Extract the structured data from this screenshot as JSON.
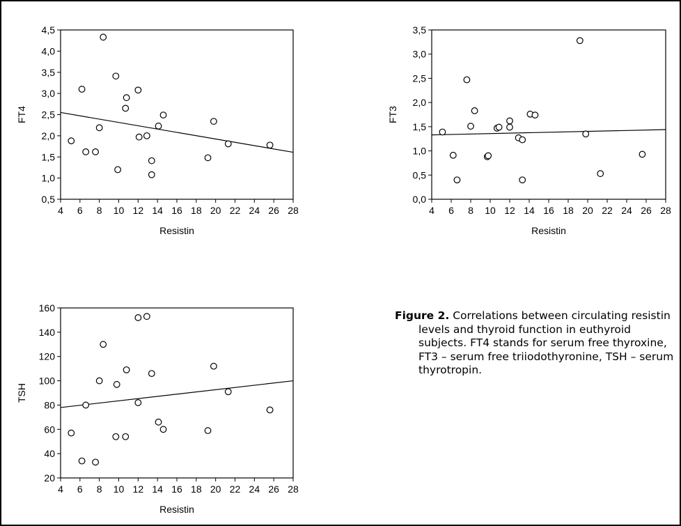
{
  "chart_data": [
    {
      "type": "scatter",
      "xlabel": "Resistin",
      "ylabel": "FT4",
      "xlim": [
        4,
        28
      ],
      "ylim": [
        0.5,
        4.5
      ],
      "xticks": [
        "4",
        "6",
        "8",
        "10",
        "12",
        "14",
        "16",
        "18",
        "20",
        "22",
        "24",
        "26",
        "28"
      ],
      "yticks": [
        "0,5",
        "1,0",
        "1,5",
        "2,0",
        "2,5",
        "3,0",
        "3,5",
        "4,0",
        "4,5"
      ],
      "grid": false,
      "points": [
        [
          5.1,
          1.88
        ],
        [
          6.2,
          3.1
        ],
        [
          6.6,
          1.62
        ],
        [
          7.6,
          1.62
        ],
        [
          8.0,
          2.19
        ],
        [
          8.4,
          4.33
        ],
        [
          9.7,
          3.41
        ],
        [
          9.9,
          1.2
        ],
        [
          10.7,
          2.65
        ],
        [
          10.8,
          2.9
        ],
        [
          12.0,
          3.08
        ],
        [
          12.1,
          1.97
        ],
        [
          12.9,
          2.0
        ],
        [
          13.4,
          1.41
        ],
        [
          13.4,
          1.08
        ],
        [
          14.1,
          2.23
        ],
        [
          14.6,
          2.49
        ],
        [
          19.2,
          1.48
        ],
        [
          19.8,
          2.34
        ],
        [
          21.3,
          1.81
        ],
        [
          25.6,
          1.78
        ]
      ],
      "trendline": {
        "x": [
          4,
          28
        ],
        "y": [
          2.55,
          1.61
        ]
      }
    },
    {
      "type": "scatter",
      "xlabel": "Resistin",
      "ylabel": "FT3",
      "xlim": [
        4,
        28
      ],
      "ylim": [
        0,
        3.5
      ],
      "xticks": [
        "4",
        "6",
        "8",
        "10",
        "12",
        "14",
        "16",
        "18",
        "20",
        "22",
        "24",
        "26",
        "28"
      ],
      "yticks": [
        "0,0",
        "0,5",
        "1,0",
        "1,5",
        "2,0",
        "2,5",
        "3,0",
        "3,5"
      ],
      "grid": false,
      "points": [
        [
          5.1,
          1.39
        ],
        [
          6.2,
          0.91
        ],
        [
          6.6,
          0.4
        ],
        [
          7.6,
          2.47
        ],
        [
          8.0,
          1.51
        ],
        [
          8.4,
          1.83
        ],
        [
          9.7,
          0.88
        ],
        [
          9.8,
          0.9
        ],
        [
          10.7,
          1.47
        ],
        [
          10.9,
          1.49
        ],
        [
          12.0,
          1.62
        ],
        [
          12.0,
          1.49
        ],
        [
          12.9,
          1.27
        ],
        [
          13.3,
          1.23
        ],
        [
          13.3,
          0.4
        ],
        [
          14.1,
          1.76
        ],
        [
          14.6,
          1.74
        ],
        [
          19.2,
          3.28
        ],
        [
          19.8,
          1.35
        ],
        [
          21.3,
          0.53
        ],
        [
          25.6,
          0.93
        ]
      ],
      "trendline": {
        "x": [
          4,
          28
        ],
        "y": [
          1.33,
          1.44
        ]
      }
    },
    {
      "type": "scatter",
      "xlabel": "Resistin",
      "ylabel": "TSH",
      "xlim": [
        4,
        28
      ],
      "ylim": [
        20,
        160
      ],
      "xticks": [
        "4",
        "6",
        "8",
        "10",
        "12",
        "14",
        "16",
        "18",
        "20",
        "22",
        "24",
        "26",
        "28"
      ],
      "yticks": [
        "20",
        "40",
        "60",
        "80",
        "100",
        "120",
        "140",
        "160"
      ],
      "grid": false,
      "points": [
        [
          5.1,
          57
        ],
        [
          6.2,
          34
        ],
        [
          6.6,
          80
        ],
        [
          7.6,
          33
        ],
        [
          8.0,
          100
        ],
        [
          8.4,
          130
        ],
        [
          9.7,
          54
        ],
        [
          9.8,
          97
        ],
        [
          10.7,
          54
        ],
        [
          10.8,
          109
        ],
        [
          12.0,
          152
        ],
        [
          12.0,
          82
        ],
        [
          12.9,
          153
        ],
        [
          13.4,
          106
        ],
        [
          14.1,
          66
        ],
        [
          14.6,
          60
        ],
        [
          19.2,
          59
        ],
        [
          19.8,
          112
        ],
        [
          21.3,
          91
        ],
        [
          25.6,
          76
        ]
      ],
      "trendline": {
        "x": [
          4,
          28
        ],
        "y": [
          78,
          100
        ]
      }
    }
  ],
  "caption": {
    "label": "Figure 2.",
    "text": " Correlations between circulating resistin levels and thyroid function in euthyroid subjects. FT4 stands for serum free thyroxine, FT3 – serum free triiodothyronine, TSH – serum thyrotropin."
  }
}
